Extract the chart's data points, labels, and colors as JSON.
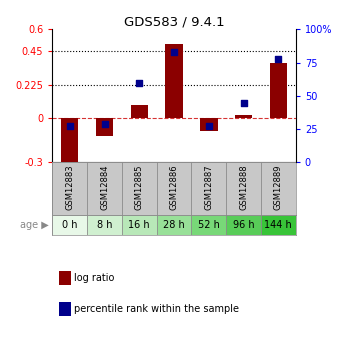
{
  "title": "GDS583 / 9.4.1",
  "samples": [
    "GSM12883",
    "GSM12884",
    "GSM12885",
    "GSM12886",
    "GSM12887",
    "GSM12888",
    "GSM12889"
  ],
  "ages": [
    "0 h",
    "8 h",
    "16 h",
    "28 h",
    "52 h",
    "96 h",
    "144 h"
  ],
  "log_ratio": [
    -0.38,
    -0.12,
    0.09,
    0.5,
    -0.09,
    0.02,
    0.37
  ],
  "percentile_rank": [
    27,
    29,
    60,
    83,
    27,
    45,
    78
  ],
  "bar_color": "#8B0000",
  "dot_color": "#00008B",
  "ylim_left": [
    -0.3,
    0.6
  ],
  "ylim_right": [
    0,
    100
  ],
  "yticks_left": [
    -0.3,
    0.0,
    0.225,
    0.45,
    0.6
  ],
  "ytick_labels_left": [
    "-0.3",
    "0",
    "0.225",
    "0.45",
    "0.6"
  ],
  "yticks_right": [
    0,
    25,
    50,
    75,
    100
  ],
  "ytick_labels_right": [
    "0",
    "25",
    "50",
    "75",
    "100%"
  ],
  "hlines": [
    0.225,
    0.45
  ],
  "zero_line": 0.0,
  "age_colors": [
    "#e8f8e8",
    "#d0f0d0",
    "#b8e8b8",
    "#98e098",
    "#78d878",
    "#58cc58",
    "#38c438"
  ],
  "sample_bg": "#c8c8c8",
  "legend_bar_label": "log ratio",
  "legend_dot_label": "percentile rank within the sample",
  "bar_width": 0.5
}
